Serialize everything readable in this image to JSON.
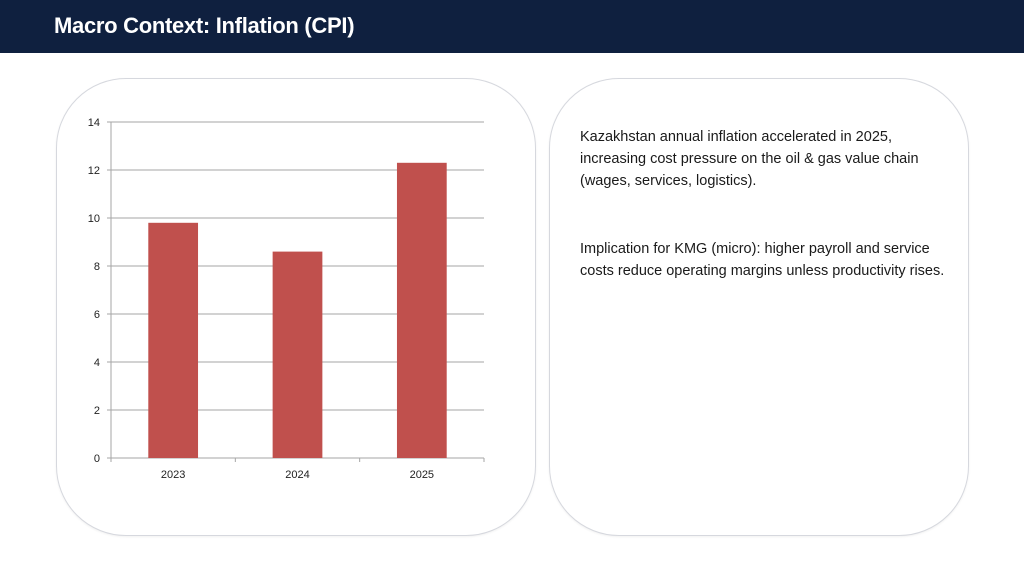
{
  "header": {
    "title": "Macro Context: Inflation (CPI)"
  },
  "text": {
    "paragraph1": "Kazakhstan annual inflation accelerated in 2025, increasing cost pressure on the oil & gas value chain (wages, services, logistics).",
    "paragraph2": "Implication for KMG (micro): higher payroll and service costs reduce operating margins unless productivity rises."
  },
  "colors": {
    "header_bg": "#0f203f",
    "bar": "#c0504d",
    "grid": "#a6a6a6"
  },
  "chart_data": {
    "type": "bar",
    "title": "",
    "xlabel": "",
    "ylabel": "",
    "categories": [
      "2023",
      "2024",
      "2025"
    ],
    "values": [
      9.8,
      8.6,
      12.3
    ],
    "ylim": [
      0,
      14
    ],
    "yticks": [
      0,
      2,
      4,
      6,
      8,
      10,
      12,
      14
    ],
    "ytick_labels": [
      "0",
      "2",
      "4",
      "6",
      "8",
      "10",
      "12",
      "14"
    ],
    "grid": true,
    "legend": "none"
  }
}
